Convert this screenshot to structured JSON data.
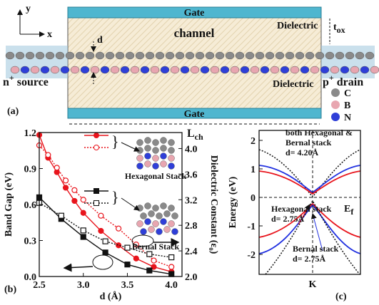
{
  "panel_a": {
    "axes": {
      "y": "y",
      "x": "x"
    },
    "gate_top": "Gate",
    "channel": "channel",
    "dielectric_top": "Dielectric",
    "t_ox": {
      "main": "t",
      "sub": "ox"
    },
    "d": "d",
    "source": {
      "main": "n",
      "sup": "+",
      "rest": " source"
    },
    "drain": {
      "main": "p",
      "sup": "+",
      "rest": " drain"
    },
    "dielectric_bottom": "Dielectric",
    "gate_bottom": "Gate",
    "l_ch": {
      "main": "L",
      "sub": "ch"
    },
    "legend": [
      {
        "label": "C",
        "color": "#8a8a8a"
      },
      {
        "label": "B",
        "color": "#e8a6b0"
      },
      {
        "label": "N",
        "color": "#2f3fd8"
      }
    ],
    "panel_label": "(a)"
  },
  "chart_data": [
    {
      "type": "line",
      "panel_label": "(b)",
      "xlabel": "d (Å)",
      "ylabel": "Band Gap (eV)",
      "y2label": "Dielectric Constant (ε₀)",
      "xlim": [
        2.5,
        4.12
      ],
      "xticks": [
        2.5,
        {
          "value": 3,
          "label": "3.0"
        },
        3.5,
        {
          "value": 4,
          "label": "4.0"
        }
      ],
      "ylim": [
        0,
        1.2
      ],
      "yticks": [
        {
          "value": 0,
          "label": "0.0"
        },
        0.3,
        0.6,
        0.9,
        1.2
      ],
      "y2lim": [
        2.0,
        4.25
      ],
      "y2ticks": [
        {
          "value": 2,
          "label": "2.0"
        },
        2.4,
        2.8,
        3.2,
        3.6,
        {
          "value": 4,
          "label": "4.0"
        }
      ],
      "series": [
        {
          "color": "#e8141c",
          "marker": "circle",
          "filled": true,
          "dashed": false,
          "x": [
            2.5,
            2.6,
            2.7,
            2.8,
            2.9,
            3.0,
            3.2,
            3.4,
            3.6,
            3.8,
            4.0
          ],
          "values": [
            1.18,
            0.99,
            0.87,
            0.74,
            0.63,
            0.53,
            0.38,
            0.26,
            0.15,
            0.08,
            0.04
          ]
        },
        {
          "color": "#e8141c",
          "marker": "circle",
          "filled": false,
          "dashed": true,
          "axis": "y2",
          "x": [
            2.5,
            2.6,
            2.7,
            2.8,
            2.9,
            3.0,
            3.2,
            3.4,
            3.6,
            3.8,
            4.0
          ],
          "values": [
            4.05,
            3.9,
            3.7,
            3.5,
            3.35,
            3.2,
            2.95,
            2.75,
            2.5,
            2.25,
            2.15
          ]
        },
        {
          "color": "#111111",
          "marker": "square",
          "filled": true,
          "dashed": false,
          "x": [
            2.5,
            2.75,
            3.0,
            3.25,
            3.5,
            3.75,
            4.0
          ],
          "values": [
            0.66,
            0.48,
            0.33,
            0.2,
            0.1,
            0.05,
            0.02
          ]
        },
        {
          "color": "#111111",
          "marker": "square",
          "filled": false,
          "dashed": true,
          "axis": "y2",
          "x": [
            2.5,
            2.75,
            3.0,
            3.25,
            3.5,
            3.75,
            4.0
          ],
          "values": [
            3.15,
            2.95,
            2.72,
            2.55,
            2.45,
            2.35,
            2.3
          ]
        }
      ],
      "annotations": [
        "Hexagonal Stack",
        "Bernal Stack"
      ]
    },
    {
      "type": "bands",
      "panel_label": "(c)",
      "ylabel": "Energy (eV)",
      "xlabel": "K",
      "ylim": [
        -2.7,
        2.35
      ],
      "yticks": [
        -2,
        -1,
        0,
        1,
        2
      ],
      "fermi_label": {
        "main": "E",
        "sub": "f"
      },
      "annotations": [
        [
          "both Hexagonal &",
          "Bernal stack",
          "d= 4.20Å"
        ],
        [
          "Hexagonal stack",
          "d= 2.75Å"
        ],
        [
          "Bernal stack",
          "d= 2.75Å"
        ]
      ]
    }
  ]
}
